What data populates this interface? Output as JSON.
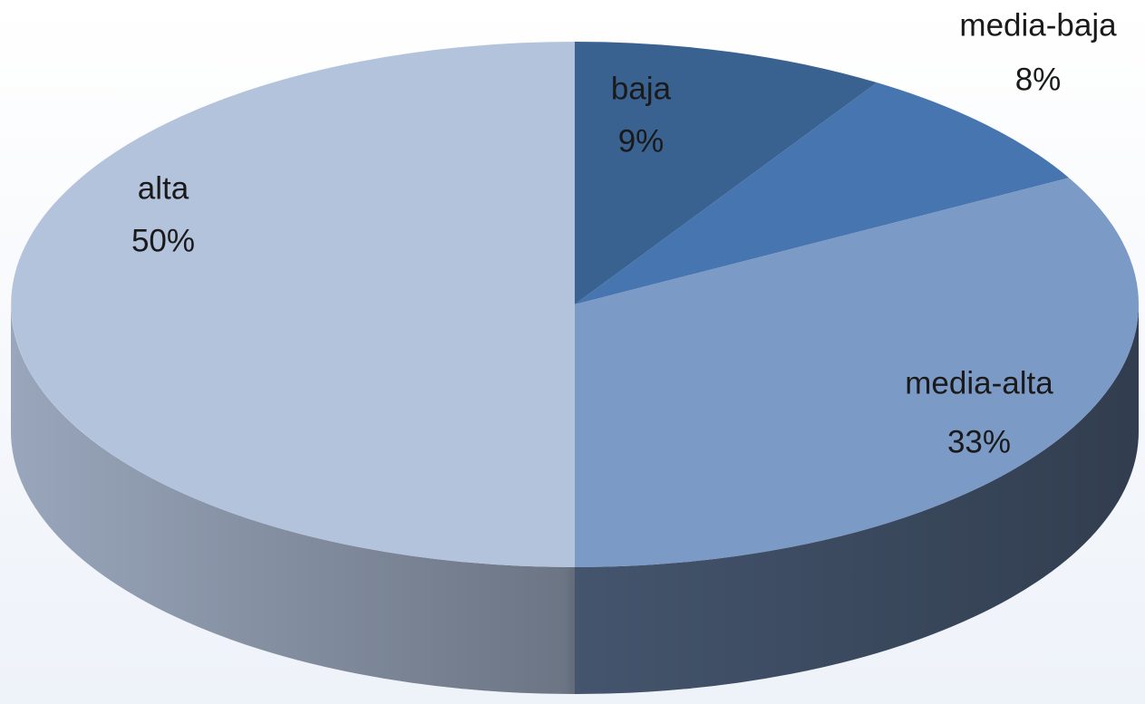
{
  "chart_data": {
    "type": "pie",
    "categories": [
      "baja",
      "media-baja",
      "media-alta",
      "alta"
    ],
    "values": [
      9,
      8,
      33,
      50
    ],
    "value_labels": [
      "9%",
      "8%",
      "33%",
      "50%"
    ],
    "colors": [
      "#3a6291",
      "#4675b0",
      "#7c9ac6",
      "#b4c3dc"
    ]
  }
}
